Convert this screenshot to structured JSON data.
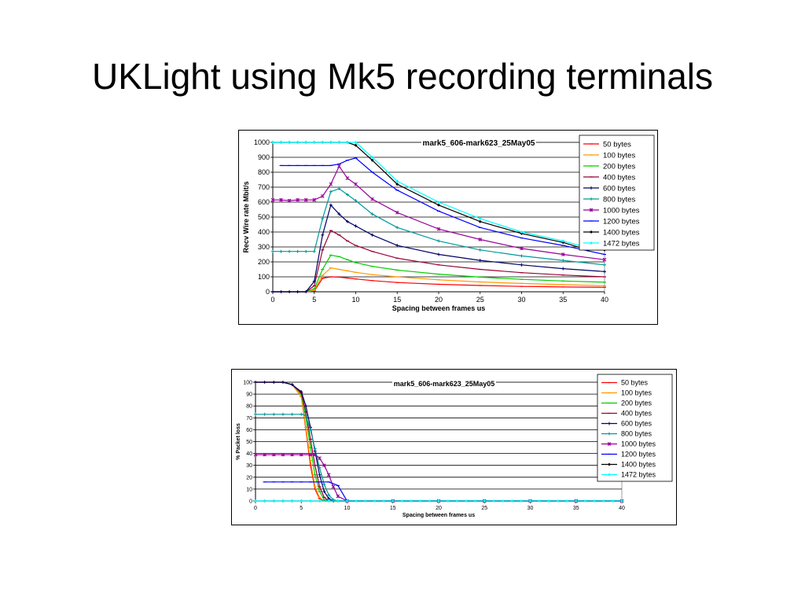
{
  "slide": {
    "title": "UKLight using Mk5 recording terminals"
  },
  "chart_data": [
    {
      "type": "line",
      "title": "mark5_606-mark623_25May05",
      "xlabel": "Spacing between frames us",
      "ylabel": "Recv Wire rate Mbit/s",
      "xlim": [
        0,
        40
      ],
      "ylim": [
        0,
        1000
      ],
      "xticks": [
        0,
        5,
        10,
        15,
        20,
        25,
        30,
        35,
        40
      ],
      "yticks": [
        0,
        100,
        200,
        300,
        400,
        500,
        600,
        700,
        800,
        900,
        1000
      ],
      "grid": "horizontal",
      "legend": "right",
      "series": [
        {
          "name": "50 bytes",
          "color": "#ff0000",
          "marker": "dash",
          "x": [
            0,
            1,
            2,
            3,
            4,
            5,
            6,
            7,
            8,
            9,
            10,
            12,
            15,
            20,
            25,
            30,
            35,
            40
          ],
          "y": [
            0,
            0,
            0,
            0,
            0,
            5,
            90,
            100,
            98,
            92,
            86,
            75,
            62,
            50,
            42,
            36,
            32,
            30
          ]
        },
        {
          "name": "100 bytes",
          "color": "#ff9900",
          "marker": "dash",
          "x": [
            0,
            1,
            2,
            3,
            4,
            5,
            6,
            7,
            8,
            9,
            10,
            12,
            15,
            20,
            25,
            30,
            35,
            40
          ],
          "y": [
            0,
            0,
            0,
            0,
            0,
            10,
            110,
            160,
            150,
            140,
            130,
            115,
            100,
            80,
            66,
            56,
            48,
            40
          ]
        },
        {
          "name": "200 bytes",
          "color": "#00cc00",
          "marker": "dash",
          "x": [
            0,
            1,
            2,
            3,
            4,
            5,
            6,
            7,
            8,
            9,
            10,
            12,
            15,
            20,
            25,
            30,
            35,
            40
          ],
          "y": [
            0,
            0,
            0,
            0,
            0,
            20,
            150,
            245,
            235,
            215,
            195,
            170,
            145,
            118,
            98,
            83,
            72,
            64
          ]
        },
        {
          "name": "400 bytes",
          "color": "#990033",
          "marker": "dash",
          "x": [
            0,
            1,
            2,
            3,
            4,
            5,
            6,
            7,
            8,
            9,
            10,
            12,
            15,
            20,
            25,
            30,
            35,
            40
          ],
          "y": [
            0,
            0,
            0,
            0,
            0,
            40,
            280,
            410,
            380,
            340,
            310,
            270,
            225,
            180,
            150,
            128,
            112,
            100
          ]
        },
        {
          "name": "600 bytes",
          "color": "#000066",
          "marker": "plus",
          "x": [
            0,
            1,
            2,
            3,
            4,
            5,
            6,
            7,
            8,
            9,
            10,
            12,
            15,
            20,
            25,
            30,
            35,
            40
          ],
          "y": [
            0,
            0,
            0,
            0,
            0,
            70,
            380,
            580,
            520,
            470,
            440,
            380,
            310,
            250,
            210,
            180,
            155,
            135
          ]
        },
        {
          "name": "800 bytes",
          "color": "#009999",
          "marker": "plus",
          "x": [
            0,
            1,
            2,
            3,
            4,
            5,
            6,
            7,
            8,
            9,
            10,
            12,
            15,
            20,
            25,
            30,
            35,
            40
          ],
          "y": [
            270,
            270,
            270,
            270,
            270,
            270,
            490,
            670,
            690,
            650,
            610,
            520,
            430,
            340,
            280,
            240,
            210,
            180
          ]
        },
        {
          "name": "1000 bytes",
          "color": "#990099",
          "marker": "star",
          "x": [
            0,
            1,
            2,
            3,
            4,
            5,
            6,
            7,
            8,
            9,
            10,
            12,
            15,
            20,
            25,
            30,
            35,
            40
          ],
          "y": [
            615,
            615,
            610,
            615,
            615,
            615,
            640,
            720,
            840,
            760,
            720,
            620,
            530,
            420,
            350,
            290,
            250,
            215
          ]
        },
        {
          "name": "1200 bytes",
          "color": "#0000ff",
          "marker": "dash",
          "x": [
            1,
            2,
            3,
            4,
            5,
            6,
            7,
            8,
            9,
            10,
            12,
            15,
            20,
            25,
            30,
            35,
            40
          ],
          "y": [
            845,
            845,
            845,
            845,
            845,
            845,
            845,
            855,
            880,
            895,
            800,
            680,
            540,
            430,
            360,
            310,
            250
          ]
        },
        {
          "name": "1400 bytes",
          "color": "#000000",
          "marker": "diamond",
          "x": [
            0,
            1,
            2,
            3,
            4,
            5,
            6,
            7,
            8,
            9,
            10,
            12,
            15,
            20,
            25,
            30,
            35,
            38,
            40
          ],
          "y": [
            1000,
            1000,
            1000,
            1000,
            1000,
            1000,
            1000,
            1000,
            1000,
            1000,
            980,
            880,
            720,
            580,
            470,
            390,
            330,
            280,
            280
          ]
        },
        {
          "name": "1472 bytes",
          "color": "#00ffff",
          "marker": "diamond",
          "x": [
            0,
            1,
            2,
            3,
            4,
            5,
            6,
            7,
            8,
            9,
            10,
            12,
            15,
            20,
            25,
            30,
            35,
            38,
            40
          ],
          "y": [
            1000,
            1000,
            1000,
            1000,
            1000,
            1000,
            1000,
            1000,
            1000,
            1000,
            1000,
            900,
            740,
            600,
            490,
            400,
            340,
            295,
            295
          ]
        }
      ]
    },
    {
      "type": "line",
      "title": "mark5_606-mark623_25May05",
      "xlabel": "Spacing between frames us",
      "ylabel": "% Packet loss",
      "xlim": [
        0,
        40
      ],
      "ylim": [
        0,
        100
      ],
      "xticks": [
        0,
        5,
        10,
        15,
        20,
        25,
        30,
        35,
        40
      ],
      "yticks": [
        0,
        10,
        20,
        30,
        40,
        50,
        60,
        70,
        80,
        90,
        100
      ],
      "grid": "horizontal",
      "legend": "right",
      "series": [
        {
          "name": "50 bytes",
          "color": "#ff0000",
          "marker": "dash",
          "x": [
            0,
            1,
            2,
            3,
            4,
            5,
            5.5,
            6,
            6.5,
            7,
            7.5,
            8,
            9,
            10,
            15,
            20,
            25,
            30,
            35,
            40
          ],
          "y": [
            100,
            100,
            100,
            100,
            98,
            88,
            60,
            30,
            10,
            2,
            0,
            0,
            0,
            0,
            0,
            0,
            0,
            0,
            0,
            0
          ]
        },
        {
          "name": "100 bytes",
          "color": "#ff9900",
          "marker": "dash",
          "x": [
            0,
            1,
            2,
            3,
            4,
            5,
            5.5,
            6,
            6.5,
            7,
            7.5,
            8,
            9,
            10,
            15,
            20,
            25,
            30,
            35,
            40
          ],
          "y": [
            100,
            100,
            100,
            100,
            98,
            88,
            62,
            34,
            12,
            3,
            0,
            0,
            0,
            0,
            0,
            0,
            0,
            0,
            0,
            0
          ]
        },
        {
          "name": "200 bytes",
          "color": "#00cc00",
          "marker": "dash",
          "x": [
            0,
            1,
            2,
            3,
            4,
            5,
            5.5,
            6,
            6.5,
            7,
            7.5,
            8,
            9,
            10,
            15,
            20,
            25,
            30,
            35,
            40
          ],
          "y": [
            100,
            100,
            100,
            100,
            98,
            90,
            70,
            45,
            22,
            8,
            1,
            0,
            0,
            0,
            0,
            0,
            0,
            0,
            0,
            0
          ]
        },
        {
          "name": "400 bytes",
          "color": "#990033",
          "marker": "dash",
          "x": [
            0,
            1,
            2,
            3,
            4,
            5,
            5.5,
            6,
            6.5,
            7,
            7.5,
            8,
            9,
            10,
            15,
            20,
            25,
            30,
            35,
            40
          ],
          "y": [
            100,
            100,
            100,
            100,
            98,
            91,
            75,
            52,
            30,
            12,
            3,
            0,
            0,
            0,
            0,
            0,
            0,
            0,
            0,
            0
          ]
        },
        {
          "name": "600 bytes",
          "color": "#000066",
          "marker": "plus",
          "x": [
            0,
            1,
            2,
            3,
            4,
            5,
            5.5,
            6,
            6.5,
            7,
            7.5,
            8,
            8.5,
            9,
            10,
            15,
            20,
            25,
            30,
            35,
            40
          ],
          "y": [
            100,
            100,
            100,
            100,
            98,
            92,
            80,
            62,
            42,
            22,
            8,
            2,
            0,
            0,
            0,
            0,
            0,
            0,
            0,
            0,
            0
          ]
        },
        {
          "name": "800 bytes",
          "color": "#009999",
          "marker": "plus",
          "x": [
            0,
            1,
            2,
            3,
            4,
            5,
            5.5,
            6,
            6.5,
            7,
            7.5,
            8,
            8.5,
            9,
            10,
            15,
            20,
            25,
            30,
            35,
            40
          ],
          "y": [
            73,
            73,
            73,
            73,
            73,
            73,
            72,
            60,
            44,
            28,
            14,
            5,
            1,
            0,
            0,
            0,
            0,
            0,
            0,
            0,
            0
          ]
        },
        {
          "name": "1000 bytes",
          "color": "#990099",
          "marker": "star",
          "x": [
            0,
            1,
            2,
            3,
            4,
            5,
            6,
            6.5,
            7,
            7.5,
            8,
            8.5,
            9,
            10,
            15,
            20,
            25,
            30,
            35,
            40
          ],
          "y": [
            39,
            39,
            39,
            39,
            39,
            39,
            39,
            39,
            36,
            30,
            22,
            12,
            4,
            0,
            0,
            0,
            0,
            0,
            0,
            0
          ]
        },
        {
          "name": "1200 bytes",
          "color": "#0000ff",
          "marker": "dash",
          "x": [
            1,
            2,
            3,
            4,
            5,
            6,
            7,
            8,
            9,
            10,
            11,
            15,
            20,
            25,
            30,
            35,
            40
          ],
          "y": [
            16,
            16,
            16,
            16,
            16,
            16,
            16,
            16,
            13,
            0,
            0,
            0,
            0,
            0,
            0,
            0,
            0
          ]
        },
        {
          "name": "1400 bytes",
          "color": "#000000",
          "marker": "diamond",
          "x": [
            0,
            1,
            2,
            3,
            4,
            5,
            10,
            15,
            20,
            25,
            30,
            35,
            40
          ],
          "y": [
            0,
            0,
            0,
            0,
            0,
            0,
            0,
            0,
            0,
            0,
            0,
            0,
            0
          ]
        },
        {
          "name": "1472 bytes",
          "color": "#00ffff",
          "marker": "diamond",
          "x": [
            0,
            1,
            2,
            3,
            4,
            5,
            6,
            7,
            8,
            9,
            10,
            11,
            12,
            13,
            14,
            15,
            16,
            17,
            18,
            19,
            20,
            21,
            22,
            23,
            24,
            25,
            26,
            27,
            28,
            29,
            30,
            31,
            32,
            33,
            34,
            35,
            36,
            37,
            38,
            39,
            40
          ],
          "y": [
            0,
            0,
            0,
            0,
            0,
            0,
            0,
            0,
            0,
            0,
            0,
            0,
            0,
            0,
            0,
            0,
            0,
            0,
            0,
            0,
            0,
            0,
            0,
            0,
            0,
            0,
            0,
            0,
            0,
            0,
            0,
            0,
            0,
            0,
            0,
            0,
            0,
            0,
            0,
            0,
            0
          ]
        }
      ]
    }
  ]
}
